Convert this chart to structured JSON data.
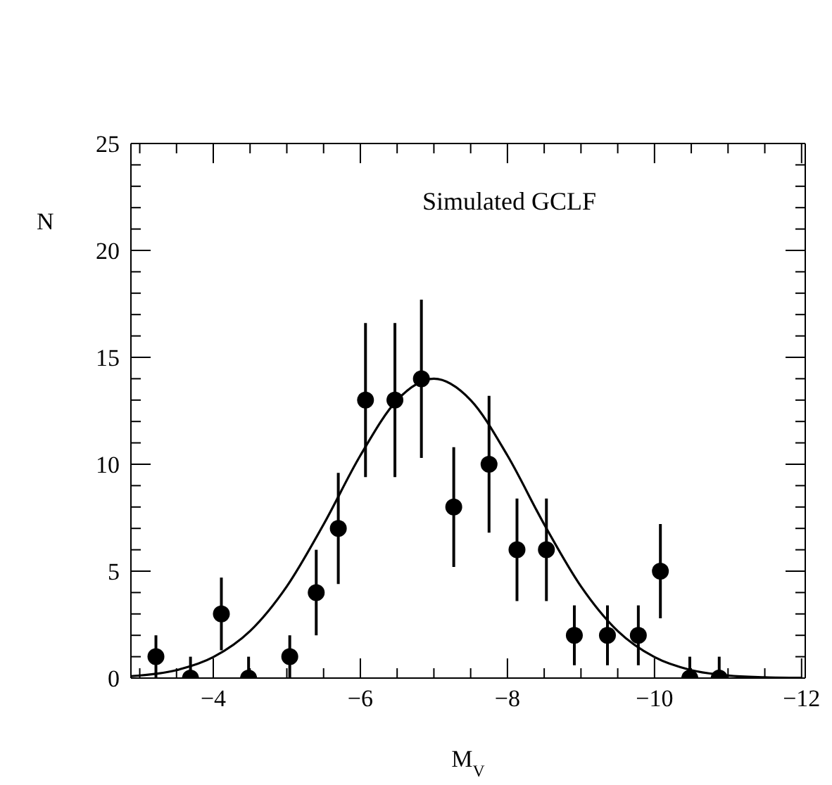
{
  "chart_data": {
    "type": "scatter",
    "xlabel": "M$_{V}$",
    "ylabel": "N",
    "annotations": [
      "Simulated GCLF"
    ],
    "xlim": [
      -2.88,
      -12.05
    ],
    "ylim": [
      0,
      25
    ],
    "xticks": [
      {
        "value": -3,
        "label": null
      },
      {
        "value": -3.5,
        "label": null
      },
      -4,
      {
        "value": -4.5,
        "label": null
      },
      {
        "value": -5,
        "label": null
      },
      {
        "value": -5.5,
        "label": null
      },
      -6,
      {
        "value": -6.5,
        "label": null
      },
      {
        "value": -7,
        "label": null
      },
      {
        "value": -7.5,
        "label": null
      },
      -8,
      {
        "value": -8.5,
        "label": null
      },
      {
        "value": -9,
        "label": null
      },
      {
        "value": -9.5,
        "label": null
      },
      -10,
      {
        "value": -10.5,
        "label": null
      },
      {
        "value": -11,
        "label": null
      },
      {
        "value": -11.5,
        "label": null
      },
      -12
    ],
    "yticks": [
      0,
      {
        "value": 1,
        "label": null
      },
      {
        "value": 2,
        "label": null
      },
      {
        "value": 3,
        "label": null
      },
      {
        "value": 4,
        "label": null
      },
      5,
      {
        "value": 6,
        "label": null
      },
      {
        "value": 7,
        "label": null
      },
      {
        "value": 8,
        "label": null
      },
      {
        "value": 9,
        "label": null
      },
      10,
      {
        "value": 11,
        "label": null
      },
      {
        "value": 12,
        "label": null
      },
      {
        "value": 13,
        "label": null
      },
      {
        "value": 14,
        "label": null
      },
      15,
      {
        "value": 16,
        "label": null
      },
      {
        "value": 17,
        "label": null
      },
      {
        "value": 18,
        "label": null
      },
      {
        "value": 19,
        "label": null
      },
      20,
      {
        "value": 21,
        "label": null
      },
      {
        "value": 22,
        "label": null
      },
      {
        "value": 23,
        "label": null
      },
      {
        "value": 24,
        "label": null
      },
      25
    ],
    "series": [
      {
        "type": "scatter",
        "marker": "circle",
        "color": "#000000",
        "x": [
          -3.22,
          -3.69,
          -4.11,
          -4.48,
          -5.04,
          -5.4,
          -5.7,
          -6.07,
          -6.47,
          -6.83,
          -7.27,
          -7.75,
          -8.13,
          -8.53,
          -8.91,
          -9.36,
          -9.78,
          -10.08,
          -10.48,
          -10.88
        ],
        "values": [
          1,
          0,
          3,
          0,
          1,
          4,
          7,
          13,
          13,
          14,
          8,
          10,
          6,
          6,
          2,
          2,
          2,
          5,
          0,
          0
        ],
        "errors": [
          1,
          [
            0,
            1
          ],
          1.7,
          [
            0,
            1
          ],
          1,
          2,
          2.6,
          3.6,
          3.6,
          3.7,
          2.8,
          3.2,
          2.4,
          2.4,
          1.4,
          1.4,
          1.4,
          2.2,
          [
            0,
            1
          ],
          [
            0,
            1
          ]
        ]
      },
      {
        "type": "line",
        "color": "#000000",
        "x": [
          -2.88,
          -3.5,
          -4,
          -4.5,
          -5,
          -5.5,
          -6,
          -6.5,
          -7,
          -7.5,
          -8,
          -8.5,
          -9,
          -9.5,
          -10,
          -10.5,
          -11,
          -11.5,
          -12
        ],
        "values": [
          0.09,
          0.37,
          0.98,
          2.2,
          4.29,
          7.19,
          10.41,
          13.0,
          14,
          13.0,
          10.41,
          7.19,
          4.29,
          2.2,
          0.98,
          0.37,
          0.12,
          0.04,
          0.01
        ]
      }
    ]
  }
}
